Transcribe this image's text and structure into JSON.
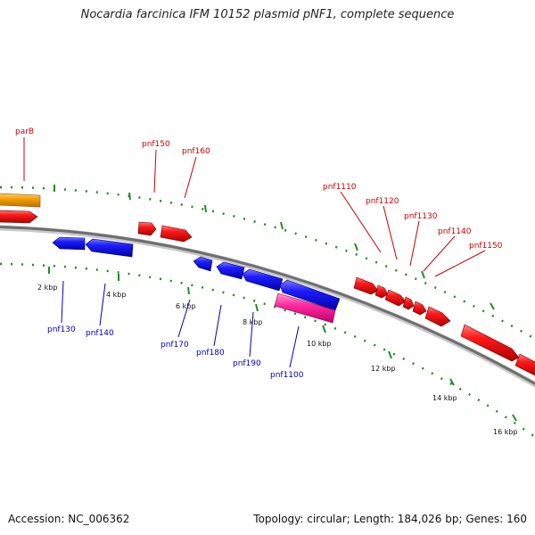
{
  "title": "Nocardia farcinica IFM 10152 plasmid pNF1, complete sequence",
  "accession": "Accession: NC_006362",
  "summary": "Topology: circular; Length: 184,026 bp; Genes: 160",
  "colors": {
    "backbone": "#8a8a8a",
    "ticks": "#228B22",
    "forward_gene": "#e00000",
    "reverse_gene": "#1010e0",
    "highlight_gene_orange": "#f39a00",
    "highlight_gene_pink": "#ff1f9a",
    "forward_label": "#cc0000",
    "reverse_label": "#0000bb",
    "kbp_label": "#111111"
  },
  "kbp_labels": [
    "2 kbp",
    "4 kbp",
    "6 kbp",
    "8 kbp",
    "10 kbp",
    "12 kbp",
    "14 kbp",
    "16 kbp"
  ],
  "forward_genes": [
    "parB",
    "pnf150",
    "pnf160",
    "pnf1110",
    "pnf1120",
    "pnf1130",
    "pnf1140",
    "pnf1150"
  ],
  "reverse_genes": [
    "pnf130",
    "pnf140",
    "pnf170",
    "pnf180",
    "pnf190",
    "pnf1100"
  ]
}
